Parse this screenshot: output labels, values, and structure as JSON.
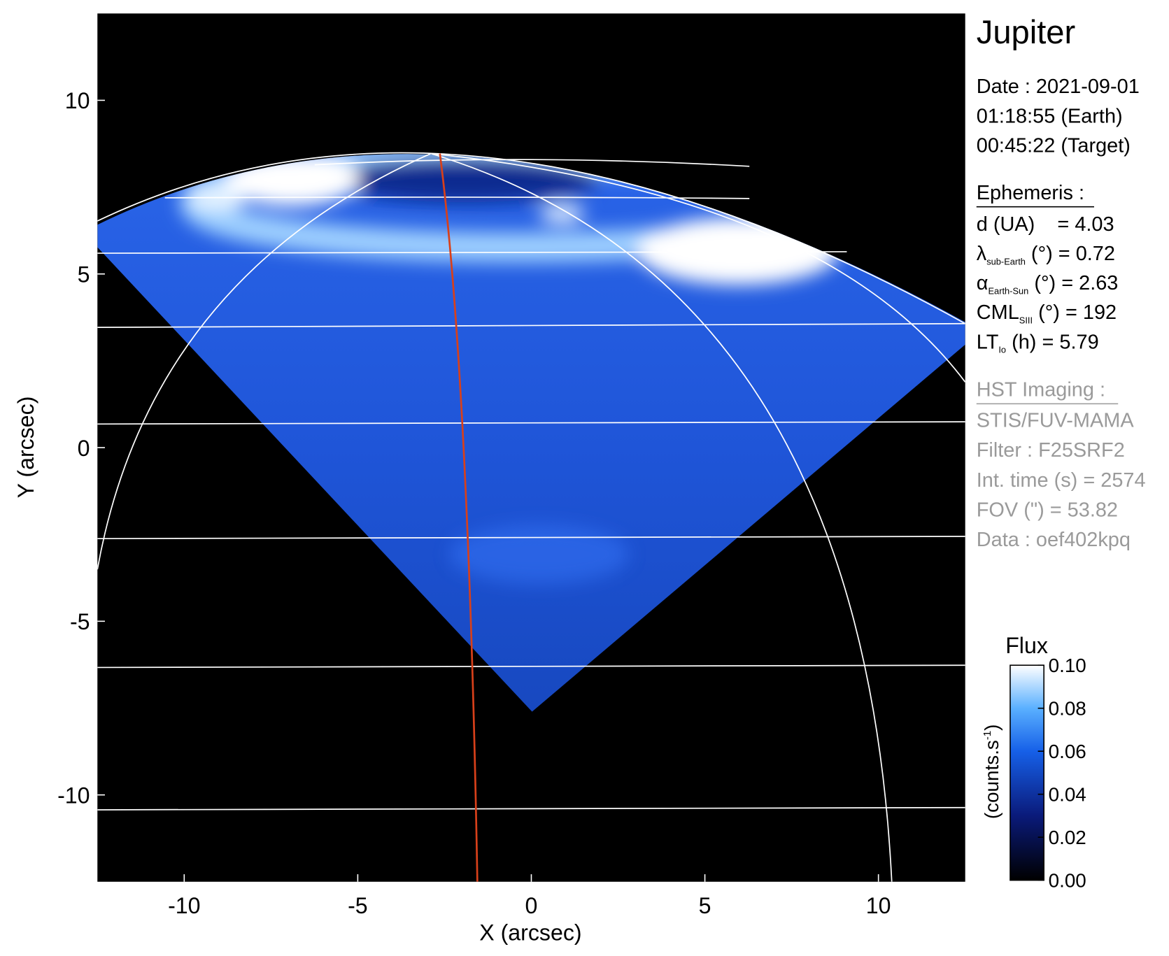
{
  "chart_data": {
    "type": "image",
    "xlabel": "X (arcsec)",
    "ylabel": "Y (arcsec)",
    "xlim": [
      -12.5,
      12.5
    ],
    "ylim": [
      -12.5,
      12.5
    ],
    "xticks": [
      -10,
      -5,
      0,
      5,
      10
    ],
    "yticks": [
      10,
      5,
      0,
      -5,
      -10
    ],
    "colorbar": {
      "title": "Flux",
      "unit": [
        "(counts.s",
        "-1",
        ")"
      ],
      "lim": [
        0,
        0.1
      ],
      "ticks": [
        {
          "value": 0,
          "label": "0.00"
        },
        {
          "value": 0.02,
          "label": "0.02"
        },
        {
          "value": 0.04,
          "label": "0.04"
        },
        {
          "value": 0.06,
          "label": "0.06"
        },
        {
          "value": 0.08,
          "label": "0.08"
        },
        {
          "value": 0.1,
          "label": "0.10"
        }
      ]
    },
    "annotations": {
      "target": "Jupiter",
      "date_lines": [
        "Date : 2021-09-01",
        "01:18:55 (Earth)",
        "00:45:22 (Target)"
      ],
      "ephemeris_heading": "Ephemeris :",
      "ephemeris": [
        {
          "symbol": "d (UA)    = 4.03"
        },
        {
          "symbol": "λ",
          "sub": "sub-Earth",
          "rest": " (°) = 0.72"
        },
        {
          "symbol": "α",
          "sub": "Earth-Sun",
          "rest": " (°) = 2.63"
        },
        {
          "symbol": "CML",
          "sub": "SIII",
          "rest": " (°) = 192"
        },
        {
          "symbol": "LT",
          "sub": "Io",
          "rest": " (h) = 5.79"
        }
      ],
      "imaging_heading": "HST Imaging :",
      "imaging": [
        "STIS/FUV-MAMA",
        "Filter : F25SRF2",
        "Int. time (s) = 2574",
        "FOV (\") = 53.82",
        "Data : oef402kpq"
      ]
    }
  }
}
